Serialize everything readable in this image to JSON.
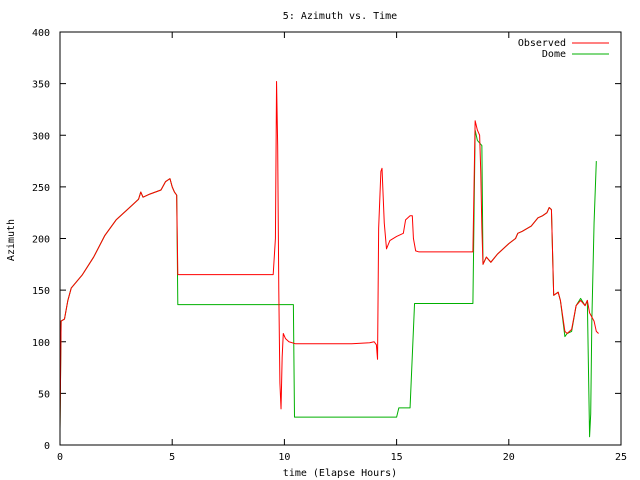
{
  "chart_data": {
    "type": "line",
    "title": "5: Azimuth vs. Time",
    "xlabel": "time (Elapse Hours)",
    "ylabel": "Azimuth",
    "xlim": [
      0,
      25
    ],
    "ylim": [
      0,
      400
    ],
    "x_ticks": [
      "0",
      "5",
      "10",
      "15",
      "20",
      "25"
    ],
    "y_ticks": [
      "0",
      "50",
      "100",
      "150",
      "200",
      "250",
      "300",
      "350",
      "400"
    ],
    "legend_position": "top-right",
    "grid": false,
    "series": [
      {
        "name": "Observed",
        "color": "#ff0000",
        "points": [
          [
            0.0,
            15
          ],
          [
            0.05,
            120
          ],
          [
            0.2,
            122
          ],
          [
            0.35,
            140
          ],
          [
            0.5,
            152
          ],
          [
            1.0,
            165
          ],
          [
            1.5,
            182
          ],
          [
            2.0,
            203
          ],
          [
            2.5,
            218
          ],
          [
            3.0,
            228
          ],
          [
            3.5,
            238
          ],
          [
            3.6,
            245
          ],
          [
            3.7,
            240
          ],
          [
            4.0,
            243
          ],
          [
            4.5,
            247
          ],
          [
            4.7,
            255
          ],
          [
            4.9,
            258
          ],
          [
            5.0,
            250
          ],
          [
            5.1,
            245
          ],
          [
            5.2,
            242
          ],
          [
            5.25,
            165
          ],
          [
            6.0,
            165
          ],
          [
            7.0,
            165
          ],
          [
            8.0,
            165
          ],
          [
            9.0,
            165
          ],
          [
            9.5,
            165
          ],
          [
            9.6,
            200
          ],
          [
            9.65,
            352
          ],
          [
            9.7,
            290
          ],
          [
            9.75,
            150
          ],
          [
            9.8,
            60
          ],
          [
            9.85,
            35
          ],
          [
            9.9,
            85
          ],
          [
            9.95,
            108
          ],
          [
            10.05,
            103
          ],
          [
            10.2,
            100
          ],
          [
            10.5,
            98
          ],
          [
            11.0,
            98
          ],
          [
            12.0,
            98
          ],
          [
            13.0,
            98
          ],
          [
            13.8,
            99
          ],
          [
            14.0,
            100
          ],
          [
            14.1,
            97
          ],
          [
            14.15,
            83
          ],
          [
            14.2,
            210
          ],
          [
            14.3,
            265
          ],
          [
            14.35,
            268
          ],
          [
            14.45,
            215
          ],
          [
            14.55,
            190
          ],
          [
            14.7,
            198
          ],
          [
            15.0,
            202
          ],
          [
            15.3,
            205
          ],
          [
            15.4,
            218
          ],
          [
            15.6,
            222
          ],
          [
            15.7,
            222
          ],
          [
            15.75,
            200
          ],
          [
            15.85,
            188
          ],
          [
            16.0,
            187
          ],
          [
            17.0,
            187
          ],
          [
            18.0,
            187
          ],
          [
            18.4,
            187
          ],
          [
            18.5,
            314
          ],
          [
            18.6,
            305
          ],
          [
            18.7,
            300
          ],
          [
            18.75,
            265
          ],
          [
            18.8,
            210
          ],
          [
            18.85,
            175
          ],
          [
            19.0,
            182
          ],
          [
            19.2,
            177
          ],
          [
            19.5,
            185
          ],
          [
            20.0,
            195
          ],
          [
            20.3,
            200
          ],
          [
            20.4,
            205
          ],
          [
            20.6,
            207
          ],
          [
            21.0,
            212
          ],
          [
            21.3,
            220
          ],
          [
            21.5,
            222
          ],
          [
            21.7,
            225
          ],
          [
            21.8,
            230
          ],
          [
            21.9,
            228
          ],
          [
            22.0,
            145
          ],
          [
            22.2,
            148
          ],
          [
            22.3,
            140
          ],
          [
            22.5,
            110
          ],
          [
            22.6,
            108
          ],
          [
            22.8,
            112
          ],
          [
            23.0,
            135
          ],
          [
            23.2,
            140
          ],
          [
            23.4,
            135
          ],
          [
            23.5,
            140
          ],
          [
            23.6,
            128
          ],
          [
            23.8,
            120
          ],
          [
            23.9,
            110
          ],
          [
            24.0,
            108
          ]
        ]
      },
      {
        "name": "Dome",
        "color": "#00b000",
        "points": [
          [
            0.0,
            15
          ],
          [
            0.05,
            120
          ],
          [
            0.2,
            122
          ],
          [
            0.35,
            140
          ],
          [
            0.5,
            152
          ],
          [
            1.0,
            165
          ],
          [
            1.5,
            182
          ],
          [
            2.0,
            203
          ],
          [
            2.5,
            218
          ],
          [
            3.0,
            228
          ],
          [
            3.5,
            238
          ],
          [
            3.6,
            245
          ],
          [
            3.7,
            240
          ],
          [
            4.0,
            243
          ],
          [
            4.5,
            247
          ],
          [
            4.7,
            255
          ],
          [
            4.9,
            258
          ],
          [
            5.0,
            250
          ],
          [
            5.1,
            245
          ],
          [
            5.2,
            242
          ],
          [
            5.25,
            136
          ],
          [
            6.0,
            136
          ],
          [
            8.0,
            136
          ],
          [
            10.0,
            136
          ],
          [
            10.4,
            136
          ],
          [
            10.45,
            27
          ],
          [
            11.0,
            27
          ],
          [
            12.0,
            27
          ],
          [
            13.0,
            27
          ],
          [
            14.0,
            27
          ],
          [
            15.0,
            27
          ],
          [
            15.1,
            36
          ],
          [
            15.5,
            36
          ],
          [
            15.6,
            36
          ],
          [
            15.8,
            137
          ],
          [
            16.0,
            137
          ],
          [
            17.0,
            137
          ],
          [
            18.0,
            137
          ],
          [
            18.4,
            137
          ],
          [
            18.5,
            305
          ],
          [
            18.6,
            295
          ],
          [
            18.8,
            290
          ],
          [
            18.85,
            175
          ],
          [
            19.0,
            182
          ],
          [
            19.2,
            177
          ],
          [
            19.5,
            185
          ],
          [
            20.0,
            195
          ],
          [
            20.3,
            200
          ],
          [
            20.4,
            205
          ],
          [
            20.6,
            207
          ],
          [
            21.0,
            212
          ],
          [
            21.3,
            220
          ],
          [
            21.5,
            222
          ],
          [
            21.7,
            225
          ],
          [
            21.8,
            230
          ],
          [
            21.9,
            228
          ],
          [
            22.0,
            145
          ],
          [
            22.2,
            148
          ],
          [
            22.3,
            140
          ],
          [
            22.5,
            105
          ],
          [
            22.6,
            108
          ],
          [
            22.8,
            110
          ],
          [
            23.0,
            135
          ],
          [
            23.2,
            142
          ],
          [
            23.4,
            135
          ],
          [
            23.5,
            140
          ],
          [
            23.6,
            8
          ],
          [
            23.65,
            30
          ],
          [
            23.7,
            120
          ],
          [
            23.8,
            215
          ],
          [
            23.9,
            275
          ]
        ]
      }
    ]
  }
}
